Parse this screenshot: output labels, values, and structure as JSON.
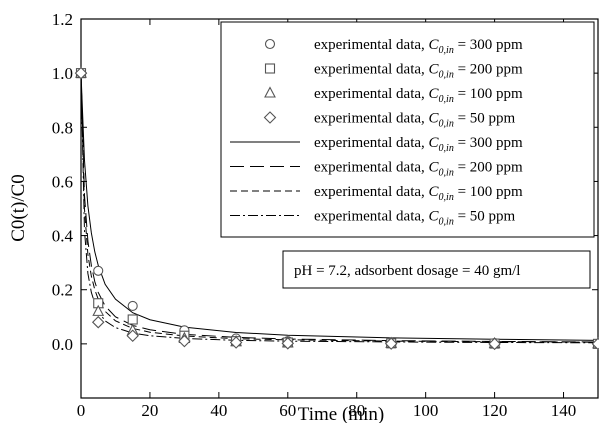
{
  "chart_data": {
    "type": "scatter",
    "xlabel": "Time (min)",
    "ylabel": "C0(t)/C0",
    "xlim": [
      0,
      150
    ],
    "ylim": [
      -0.2,
      1.2
    ],
    "x_ticks": [
      0,
      20,
      40,
      60,
      80,
      100,
      120,
      140
    ],
    "x_tick_labels": [
      "0",
      "20",
      "40",
      "60",
      "80",
      "100",
      "120",
      "140"
    ],
    "y_ticks": [
      0.0,
      0.2,
      0.4,
      0.6,
      0.8,
      1.0,
      1.2
    ],
    "y_tick_labels": [
      "0.0",
      "0.2",
      "0.4",
      "0.6",
      "0.8",
      "1.0",
      "1.2"
    ],
    "grid": false,
    "legend_position": "top-right",
    "series": [
      {
        "name": "experimental data, C0,in = 300 ppm",
        "kind": "points",
        "marker": "circle",
        "x": [
          0,
          5,
          15,
          30,
          45,
          60,
          90,
          120,
          150
        ],
        "y": [
          1.0,
          0.27,
          0.14,
          0.05,
          0.02,
          0.01,
          0.005,
          0.003,
          0.0
        ]
      },
      {
        "name": "experimental data, C0,in = 200 ppm",
        "kind": "points",
        "marker": "square",
        "x": [
          0,
          5,
          15,
          30,
          45,
          60,
          90,
          120,
          150
        ],
        "y": [
          1.0,
          0.15,
          0.09,
          0.03,
          0.01,
          0.005,
          0.002,
          0.001,
          0.0
        ]
      },
      {
        "name": "experimental data, C0,in = 100 ppm",
        "kind": "points",
        "marker": "triangle",
        "x": [
          0,
          5,
          15,
          30,
          45,
          60,
          90,
          120,
          150
        ],
        "y": [
          1.0,
          0.12,
          0.05,
          0.02,
          0.008,
          0.004,
          0.002,
          0.001,
          0.0
        ]
      },
      {
        "name": "experimental data, C0,in = 50 ppm",
        "kind": "points",
        "marker": "diamond",
        "x": [
          0,
          5,
          15,
          30,
          45,
          60,
          90,
          120,
          150
        ],
        "y": [
          1.0,
          0.08,
          0.03,
          0.01,
          0.005,
          0.002,
          0.001,
          0.0,
          0.0
        ]
      },
      {
        "name": "experimental data, C0,in = 300 ppm",
        "kind": "line",
        "dash": "solid",
        "x": [
          0,
          1,
          2,
          3,
          4,
          5,
          7,
          10,
          15,
          20,
          30,
          45,
          60,
          90,
          120,
          150
        ],
        "y": [
          1.0,
          0.68,
          0.51,
          0.41,
          0.34,
          0.29,
          0.22,
          0.165,
          0.115,
          0.089,
          0.062,
          0.042,
          0.032,
          0.022,
          0.017,
          0.013
        ]
      },
      {
        "name": "experimental data, C0,in = 200 ppm",
        "kind": "line",
        "dash": "long",
        "x": [
          0,
          1,
          2,
          3,
          4,
          5,
          7,
          10,
          15,
          20,
          30,
          45,
          60,
          90,
          120,
          150
        ],
        "y": [
          1.0,
          0.55,
          0.38,
          0.29,
          0.23,
          0.19,
          0.14,
          0.1,
          0.068,
          0.052,
          0.035,
          0.024,
          0.018,
          0.012,
          0.009,
          0.007
        ]
      },
      {
        "name": "experimental data, C0,in = 100 ppm",
        "kind": "line",
        "dash": "short",
        "x": [
          0,
          1,
          2,
          3,
          4,
          5,
          7,
          10,
          15,
          20,
          30,
          45,
          60,
          90,
          120,
          150
        ],
        "y": [
          1.0,
          0.5,
          0.33,
          0.25,
          0.2,
          0.165,
          0.12,
          0.085,
          0.057,
          0.043,
          0.029,
          0.019,
          0.015,
          0.01,
          0.008,
          0.006
        ]
      },
      {
        "name": "experimental data, C0,in = 50 ppm",
        "kind": "line",
        "dash": "dashdot",
        "x": [
          0,
          1,
          2,
          3,
          4,
          5,
          7,
          10,
          15,
          20,
          30,
          45,
          60,
          90,
          120,
          150
        ],
        "y": [
          1.0,
          0.42,
          0.26,
          0.19,
          0.15,
          0.12,
          0.085,
          0.06,
          0.04,
          0.03,
          0.02,
          0.013,
          0.01,
          0.007,
          0.005,
          0.004
        ]
      }
    ],
    "legend_entries": [
      {
        "prefix": "experimental data, ",
        "var": "C",
        "sub": "0,in",
        "suffix": " = 300 ppm",
        "symbol": "circle"
      },
      {
        "prefix": "experimental data, ",
        "var": "C",
        "sub": "0,in",
        "suffix": " = 200 ppm",
        "symbol": "square"
      },
      {
        "prefix": "experimental data, ",
        "var": "C",
        "sub": "0,in",
        "suffix": " = 100 ppm",
        "symbol": "triangle"
      },
      {
        "prefix": "experimental data, ",
        "var": "C",
        "sub": "0,in",
        "suffix": " = 50 ppm",
        "symbol": "diamond"
      },
      {
        "prefix": "experimental data, ",
        "var": "C",
        "sub": "0,in",
        "suffix": " = 300 ppm",
        "symbol": "solid"
      },
      {
        "prefix": "experimental data, ",
        "var": "C",
        "sub": "0,in",
        "suffix": " = 200 ppm",
        "symbol": "long"
      },
      {
        "prefix": "experimental data, ",
        "var": "C",
        "sub": "0,in",
        "suffix": " = 100 ppm",
        "symbol": "short"
      },
      {
        "prefix": "experimental data, ",
        "var": "C",
        "sub": "0,in",
        "suffix": " = 50 ppm",
        "symbol": "dashdot"
      }
    ],
    "annotation": "pH = 7.2, adsorbent dosage = 40 gm/l",
    "colors": {
      "ink": "#000000",
      "marker": "#555555",
      "background": "#ffffff"
    }
  }
}
